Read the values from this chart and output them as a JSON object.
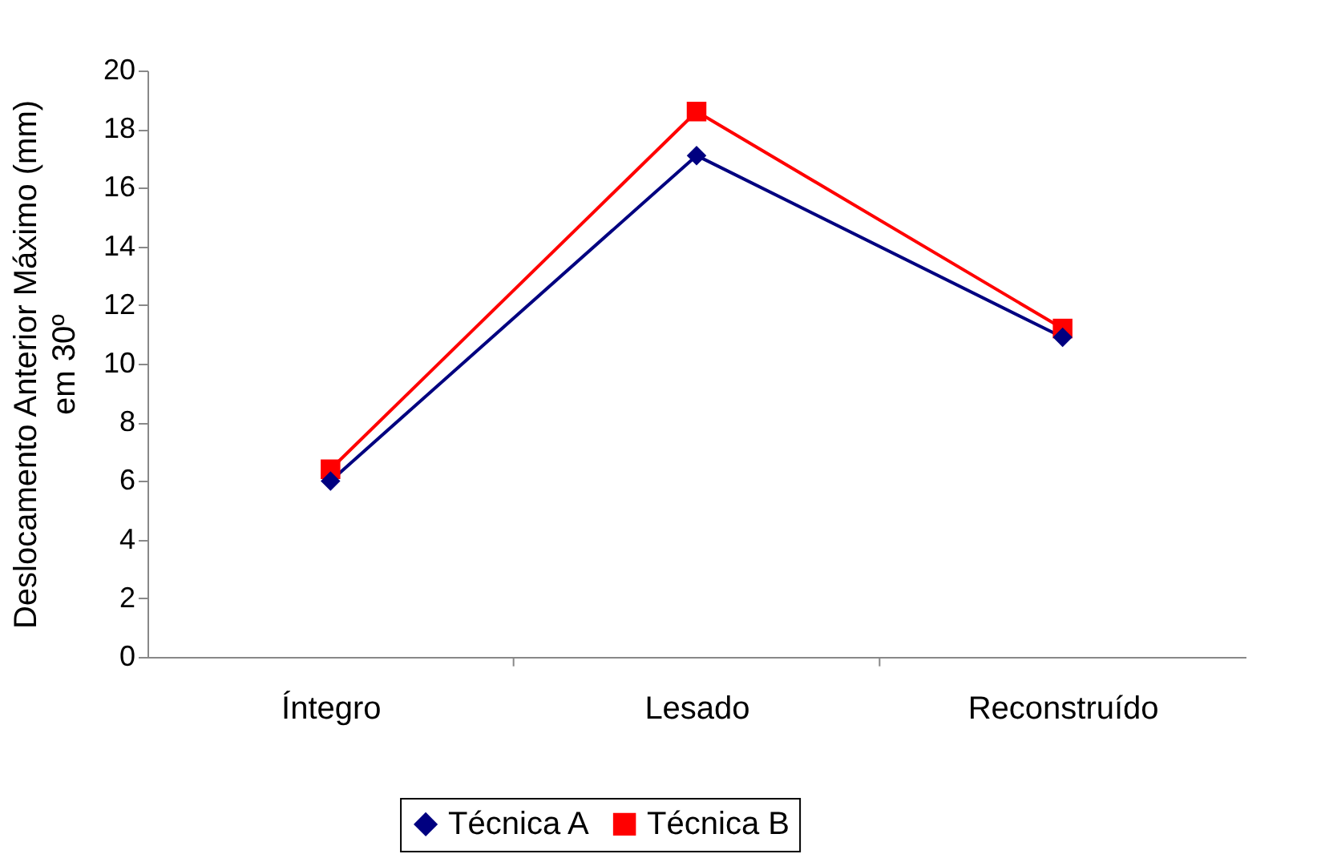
{
  "chart_data": {
    "type": "line",
    "ylabel": "Deslocamento Anterior Máximo (mm)\nem 30º",
    "categories": [
      "Íntegro",
      "Lesado",
      "Reconstruído"
    ],
    "series": [
      {
        "name": "Técnica A",
        "color": "#000080",
        "marker": "diamond",
        "values": [
          6.0,
          17.1,
          10.9
        ]
      },
      {
        "name": "Técnica B",
        "color": "#ff0000",
        "marker": "square",
        "values": [
          6.4,
          18.6,
          11.2
        ]
      }
    ],
    "ylim": [
      0,
      20
    ],
    "yticks": [
      0,
      2,
      4,
      6,
      8,
      10,
      12,
      14,
      16,
      18,
      20
    ],
    "grid": false,
    "legend": "bottom",
    "line_style": "solid"
  }
}
